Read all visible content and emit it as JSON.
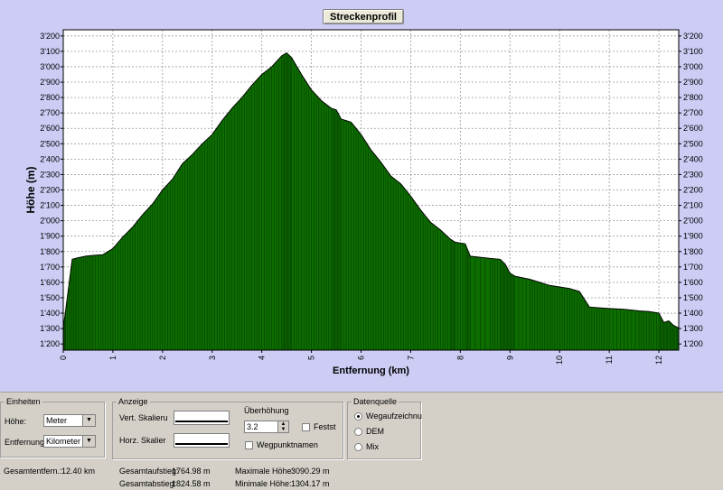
{
  "window": {
    "title_button": "Streckenprofil"
  },
  "chart_data": {
    "type": "area",
    "title": "Streckenprofil",
    "xlabel": "Entfernung (km)",
    "ylabel": "Höhe (m)",
    "xlim": [
      0,
      12.4
    ],
    "ylim": [
      1160,
      3240
    ],
    "x_ticks": [
      0,
      1,
      2,
      3,
      4,
      5,
      6,
      7,
      8,
      9,
      10,
      11,
      12
    ],
    "y_ticks": [
      {
        "v": 1200,
        "label": "1'200"
      },
      {
        "v": 1300,
        "label": "1'300"
      },
      {
        "v": 1400,
        "label": "1'400"
      },
      {
        "v": 1500,
        "label": "1'500"
      },
      {
        "v": 1600,
        "label": "1'600"
      },
      {
        "v": 1700,
        "label": "1'700"
      },
      {
        "v": 1800,
        "label": "1'800"
      },
      {
        "v": 1900,
        "label": "1'900"
      },
      {
        "v": 2000,
        "label": "2'000"
      },
      {
        "v": 2100,
        "label": "2'100"
      },
      {
        "v": 2200,
        "label": "2'200"
      },
      {
        "v": 2300,
        "label": "2'300"
      },
      {
        "v": 2400,
        "label": "2'400"
      },
      {
        "v": 2500,
        "label": "2'500"
      },
      {
        "v": 2600,
        "label": "2'600"
      },
      {
        "v": 2700,
        "label": "2'700"
      },
      {
        "v": 2800,
        "label": "2'800"
      },
      {
        "v": 2900,
        "label": "2'900"
      },
      {
        "v": 3000,
        "label": "3'000"
      },
      {
        "v": 3100,
        "label": "3'100"
      },
      {
        "v": 3200,
        "label": "3'200"
      }
    ],
    "grid": true,
    "fill_color": "#0d6e00",
    "line_color": "#000000",
    "points": [
      [
        0.0,
        1304
      ],
      [
        0.05,
        1420
      ],
      [
        0.18,
        1750
      ],
      [
        0.3,
        1760
      ],
      [
        0.45,
        1770
      ],
      [
        0.6,
        1775
      ],
      [
        0.8,
        1780
      ],
      [
        1.0,
        1820
      ],
      [
        1.2,
        1895
      ],
      [
        1.4,
        1960
      ],
      [
        1.6,
        2040
      ],
      [
        1.8,
        2110
      ],
      [
        2.0,
        2200
      ],
      [
        2.2,
        2270
      ],
      [
        2.4,
        2370
      ],
      [
        2.6,
        2430
      ],
      [
        2.8,
        2500
      ],
      [
        3.0,
        2560
      ],
      [
        3.2,
        2650
      ],
      [
        3.4,
        2730
      ],
      [
        3.6,
        2800
      ],
      [
        3.8,
        2880
      ],
      [
        4.0,
        2950
      ],
      [
        4.2,
        3000
      ],
      [
        4.4,
        3070
      ],
      [
        4.5,
        3090
      ],
      [
        4.6,
        3060
      ],
      [
        4.8,
        2950
      ],
      [
        5.0,
        2850
      ],
      [
        5.2,
        2780
      ],
      [
        5.4,
        2730
      ],
      [
        5.5,
        2720
      ],
      [
        5.6,
        2660
      ],
      [
        5.8,
        2640
      ],
      [
        6.0,
        2560
      ],
      [
        6.2,
        2460
      ],
      [
        6.4,
        2380
      ],
      [
        6.6,
        2290
      ],
      [
        6.8,
        2240
      ],
      [
        7.0,
        2160
      ],
      [
        7.2,
        2070
      ],
      [
        7.4,
        1990
      ],
      [
        7.6,
        1940
      ],
      [
        7.8,
        1880
      ],
      [
        7.9,
        1860
      ],
      [
        8.1,
        1850
      ],
      [
        8.2,
        1770
      ],
      [
        8.6,
        1755
      ],
      [
        8.8,
        1750
      ],
      [
        8.9,
        1720
      ],
      [
        9.0,
        1660
      ],
      [
        9.1,
        1640
      ],
      [
        9.4,
        1620
      ],
      [
        9.6,
        1600
      ],
      [
        9.8,
        1580
      ],
      [
        10.0,
        1570
      ],
      [
        10.2,
        1560
      ],
      [
        10.4,
        1540
      ],
      [
        10.6,
        1440
      ],
      [
        10.8,
        1435
      ],
      [
        11.0,
        1430
      ],
      [
        11.3,
        1425
      ],
      [
        11.6,
        1415
      ],
      [
        11.8,
        1410
      ],
      [
        12.0,
        1400
      ],
      [
        12.1,
        1340
      ],
      [
        12.2,
        1350
      ],
      [
        12.3,
        1320
      ],
      [
        12.4,
        1304
      ]
    ]
  },
  "einheiten": {
    "legend": "Einheiten",
    "hoehe_label": "Höhe:",
    "hoehe_value": "Meter",
    "entfernung_label": "Entfernung:",
    "entfernung_value": "Kilometer"
  },
  "anzeige": {
    "legend": "Anzeige",
    "vert_label": "Vert. Skalieru",
    "horz_label": "Horz. Skalier",
    "ueberhoehung_label": "Überhöhung",
    "ueberhoehung_value": "3.2",
    "festst_label": "Festst",
    "wegpunktnamen_label": "Wegpunktnamen"
  },
  "datenquelle": {
    "legend": "Datenquelle",
    "options": [
      "Wegaufzeichnu",
      "DEM",
      "Mix"
    ]
  },
  "stats": {
    "gesamtentfernung_label": "Gesamtentfern.:",
    "gesamtentfernung_value": "12.40 km",
    "gesamtaufstieg_label": "Gesamtaufstieg:",
    "gesamtaufstieg_value": "1764.98 m",
    "gesamtabstieg_label": "Gesamtabstieg:",
    "gesamtabstieg_value": "1824.58 m",
    "max_hoehe_label": "Maximale Höhe:",
    "max_hoehe_value": "3090.29 m",
    "min_hoehe_label": "Minimale Höhe:",
    "min_hoehe_value": "1304.17 m"
  }
}
